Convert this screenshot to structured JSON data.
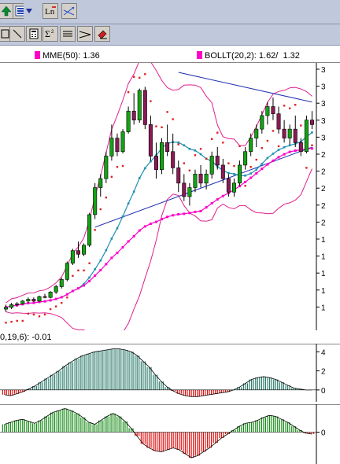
{
  "toolbar": {
    "row1": [
      "up-arrow-icon",
      "list-icon",
      "chevron-down-icon",
      "ln-icon",
      "trend-arrows-icon"
    ],
    "row2": [
      "frame-icon",
      "diagonal-line-icon",
      "calculator-icon",
      "sigma-icon",
      "lines-icon",
      "ray-icon",
      "eraser-icon"
    ]
  },
  "legend": {
    "mme_label": "MME(50):",
    "mme_value": "1.36",
    "boll_label": "BOLLT(20,2):",
    "boll_value": "1.62/  1.32",
    "mme_color": "#ff00c8",
    "boll_color": "#ff00c8"
  },
  "indicator_label": "0,19,6): -0.01",
  "axes": {
    "price_ticks": [
      "3",
      "3",
      "3",
      "3",
      "3",
      "2",
      "2",
      "2",
      "2",
      "2",
      "1",
      "1",
      "1",
      "1",
      "1"
    ],
    "macd_ticks": [
      "4",
      "2",
      "0"
    ],
    "osc_ticks": [
      "0"
    ]
  },
  "chart_data": [
    {
      "type": "candlestick",
      "name": "price",
      "ohlc": [
        [
          1.05,
          1.1,
          1.02,
          1.07
        ],
        [
          1.07,
          1.12,
          1.05,
          1.1
        ],
        [
          1.1,
          1.13,
          1.08,
          1.11
        ],
        [
          1.11,
          1.15,
          1.1,
          1.14
        ],
        [
          1.14,
          1.18,
          1.12,
          1.16
        ],
        [
          1.16,
          1.18,
          1.13,
          1.14
        ],
        [
          1.14,
          1.2,
          1.13,
          1.19
        ],
        [
          1.19,
          1.22,
          1.17,
          1.18
        ],
        [
          1.18,
          1.25,
          1.17,
          1.24
        ],
        [
          1.24,
          1.32,
          1.22,
          1.3
        ],
        [
          1.3,
          1.4,
          1.28,
          1.38
        ],
        [
          1.38,
          1.58,
          1.36,
          1.56
        ],
        [
          1.56,
          1.72,
          1.54,
          1.7
        ],
        [
          1.7,
          1.8,
          1.62,
          1.66
        ],
        [
          1.66,
          1.78,
          1.64,
          1.76
        ],
        [
          1.76,
          2.12,
          1.74,
          2.1
        ],
        [
          2.1,
          2.45,
          2.05,
          2.4
        ],
        [
          2.4,
          2.55,
          2.3,
          2.5
        ],
        [
          2.5,
          2.8,
          2.45,
          2.75
        ],
        [
          2.75,
          3.1,
          2.7,
          2.95
        ],
        [
          2.95,
          3.0,
          2.75,
          2.8
        ],
        [
          2.8,
          3.05,
          2.78,
          3.02
        ],
        [
          3.02,
          3.3,
          3.0,
          3.25
        ],
        [
          3.25,
          3.45,
          3.1,
          3.15
        ],
        [
          3.15,
          3.5,
          3.12,
          3.48
        ],
        [
          3.48,
          3.52,
          3.05,
          3.1
        ],
        [
          3.1,
          3.2,
          2.7,
          2.75
        ],
        [
          2.75,
          2.9,
          2.5,
          2.6
        ],
        [
          2.6,
          2.95,
          2.55,
          2.9
        ],
        [
          2.9,
          3.1,
          2.75,
          2.8
        ],
        [
          2.8,
          3.0,
          2.55,
          2.62
        ],
        [
          2.62,
          2.7,
          2.35,
          2.45
        ],
        [
          2.45,
          2.55,
          2.25,
          2.3
        ],
        [
          2.3,
          2.45,
          2.2,
          2.4
        ],
        [
          2.4,
          2.6,
          2.35,
          2.55
        ],
        [
          2.55,
          2.65,
          2.4,
          2.45
        ],
        [
          2.45,
          2.6,
          2.38,
          2.55
        ],
        [
          2.55,
          2.8,
          2.5,
          2.75
        ],
        [
          2.75,
          2.85,
          2.6,
          2.65
        ],
        [
          2.65,
          2.72,
          2.45,
          2.5
        ],
        [
          2.5,
          2.55,
          2.3,
          2.35
        ],
        [
          2.35,
          2.5,
          2.3,
          2.45
        ],
        [
          2.45,
          2.7,
          2.42,
          2.65
        ],
        [
          2.65,
          2.85,
          2.6,
          2.8
        ],
        [
          2.8,
          3.0,
          2.75,
          2.95
        ],
        [
          2.95,
          3.1,
          2.85,
          3.05
        ],
        [
          3.05,
          3.25,
          3.0,
          3.2
        ],
        [
          3.2,
          3.35,
          3.1,
          3.3
        ],
        [
          3.3,
          3.4,
          3.15,
          3.22
        ],
        [
          3.22,
          3.3,
          3.0,
          3.05
        ],
        [
          3.05,
          3.15,
          2.9,
          2.95
        ],
        [
          2.95,
          3.1,
          2.88,
          3.05
        ],
        [
          3.05,
          3.2,
          2.85,
          2.9
        ],
        [
          2.9,
          2.95,
          2.75,
          2.8
        ],
        [
          2.8,
          3.2,
          2.78,
          3.15
        ],
        [
          3.15,
          3.25,
          3.05,
          3.1
        ]
      ],
      "series": [
        {
          "name": "MME(50)",
          "color": "#ff00c8"
        },
        {
          "name": "BOLLT(20,2)",
          "color": "#e0208c"
        }
      ],
      "ylim": [
        0.85,
        3.75
      ]
    },
    {
      "type": "bar",
      "name": "macd",
      "values": [
        -0.5,
        -0.6,
        -0.4,
        -0.2,
        0.1,
        0.4,
        0.8,
        1.2,
        1.6,
        2.0,
        2.5,
        2.9,
        3.3,
        3.6,
        3.8,
        4.0,
        4.1,
        4.2,
        4.3,
        4.3,
        4.2,
        4.0,
        3.6,
        3.0,
        2.4,
        1.6,
        0.9,
        0.3,
        -0.1,
        -0.4,
        -0.6,
        -0.7,
        -0.7,
        -0.6,
        -0.5,
        -0.4,
        -0.3,
        -0.2,
        0.0,
        0.3,
        0.7,
        1.1,
        1.3,
        1.4,
        1.3,
        1.1,
        0.8,
        0.5,
        0.2,
        0.1,
        0.0,
        0.0
      ],
      "ylim": [
        -1.0,
        4.6
      ]
    },
    {
      "type": "bar",
      "name": "oscillator",
      "values": [
        0.8,
        1.0,
        1.2,
        1.3,
        1.1,
        0.9,
        1.2,
        1.6,
        2.0,
        2.2,
        2.4,
        2.2,
        1.9,
        1.5,
        1.0,
        0.8,
        1.2,
        1.6,
        1.9,
        1.6,
        1.1,
        0.4,
        -0.4,
        -1.2,
        -1.6,
        -1.9,
        -2.0,
        -1.8,
        -1.6,
        -1.8,
        -2.2,
        -2.6,
        -2.4,
        -2.0,
        -1.6,
        -1.1,
        -0.6,
        -0.2,
        0.2,
        0.6,
        0.9,
        1.0,
        1.2,
        1.5,
        1.7,
        1.6,
        1.3,
        1.0,
        0.6,
        0.2,
        -0.1,
        -0.2
      ],
      "ylim": [
        -3.0,
        2.6
      ]
    }
  ]
}
